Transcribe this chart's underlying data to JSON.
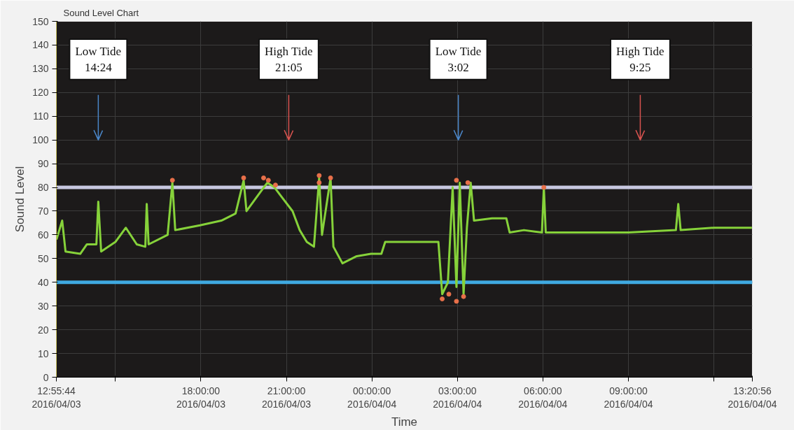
{
  "chart_data": {
    "type": "line",
    "title": "Sound Level Chart",
    "xlabel": "Time",
    "ylabel": "Sound Level",
    "xlim": [
      "2016-04-03T12:55:44",
      "2016-04-04T13:20:56"
    ],
    "xticks": [
      {
        "value": "2016-04-03T12:55:44",
        "label": "12:55:44\n2016/04/03"
      },
      {
        "value": "2016-04-03T15:00",
        "label": null
      },
      {
        "value": "2016-04-03T18:00",
        "label": "18:00:00\n2016/04/03"
      },
      {
        "value": "2016-04-03T21:00",
        "label": "21:00:00\n2016/04/03"
      },
      {
        "value": "2016-04-04T00:00",
        "label": "00:00:00\n2016/04/04"
      },
      {
        "value": "2016-04-04T03:00",
        "label": "03:00:00\n2016/04/04"
      },
      {
        "value": "2016-04-04T06:00",
        "label": "06:00:00\n2016/04/04"
      },
      {
        "value": "2016-04-04T09:00",
        "label": "09:00:00\n2016/04/04"
      },
      {
        "value": "2016-04-04T12:00",
        "label": null
      },
      {
        "value": "2016-04-04T13:20:56",
        "label": "13:20:56\n2016/04/04"
      }
    ],
    "ylim": [
      0,
      150
    ],
    "yticks": [
      0,
      10,
      20,
      30,
      40,
      50,
      60,
      70,
      80,
      90,
      100,
      110,
      120,
      130,
      140,
      150
    ],
    "grid": true,
    "series": [
      {
        "color": "#86d23a",
        "x": [
          "2016-04-03T12:56",
          "2016-04-03T13:08",
          "2016-04-03T13:15",
          "2016-04-03T13:46",
          "2016-04-03T14:00",
          "2016-04-03T14:20",
          "2016-04-03T14:24",
          "2016-04-03T14:30",
          "2016-04-03T15:00",
          "2016-04-03T15:22",
          "2016-04-03T15:45",
          "2016-04-03T16:03",
          "2016-04-03T16:06",
          "2016-04-03T16:10",
          "2016-04-03T16:50",
          "2016-04-03T17:00",
          "2016-04-03T17:06",
          "2016-04-03T17:58",
          "2016-04-03T18:43",
          "2016-04-03T19:13",
          "2016-04-03T19:30",
          "2016-04-03T19:36",
          "2016-04-03T20:05",
          "2016-04-03T20:20",
          "2016-04-03T20:35",
          "2016-04-03T20:50",
          "2016-04-03T21:13",
          "2016-04-03T21:28",
          "2016-04-03T21:43",
          "2016-04-03T21:58",
          "2016-04-03T22:09",
          "2016-04-03T22:15",
          "2016-04-03T22:33",
          "2016-04-03T22:39",
          "2016-04-03T22:58",
          "2016-04-03T23:28",
          "2016-04-03T23:58",
          "2016-04-04T00:20",
          "2016-04-04T00:28",
          "2016-04-04T01:05",
          "2016-04-04T01:43",
          "2016-04-04T02:20",
          "2016-04-04T02:28",
          "2016-04-04T02:40",
          "2016-04-04T02:50",
          "2016-04-04T02:58",
          "2016-04-04T03:05",
          "2016-04-04T03:13",
          "2016-04-04T03:20",
          "2016-04-04T03:28",
          "2016-04-04T03:35",
          "2016-04-04T04:13",
          "2016-04-04T04:43",
          "2016-04-04T04:50",
          "2016-04-04T05:20",
          "2016-04-04T05:58",
          "2016-04-04T06:02",
          "2016-04-04T06:06",
          "2016-04-04T07:40",
          "2016-04-04T09:00",
          "2016-04-04T10:40",
          "2016-04-04T10:45",
          "2016-04-04T10:50",
          "2016-04-04T12:00",
          "2016-04-04T13:20"
        ],
        "values": [
          58,
          66,
          53,
          52,
          56,
          56,
          74,
          53,
          57,
          63,
          56,
          55,
          73,
          56,
          60,
          82,
          62,
          64,
          66,
          69,
          83,
          70,
          78,
          82,
          80,
          76,
          70,
          62,
          57,
          55,
          84,
          60,
          84,
          55,
          48,
          51,
          52,
          52,
          57,
          57,
          57,
          57,
          35,
          40,
          80,
          38,
          82,
          35,
          63,
          82,
          66,
          67,
          67,
          61,
          62,
          61,
          80,
          61,
          61,
          61,
          62,
          73,
          62,
          63,
          63
        ]
      },
      {
        "type": "scatter",
        "color": "#e8704a",
        "marker": "circle",
        "x": [
          "2016-04-03T17:00",
          "2016-04-03T19:30",
          "2016-04-03T20:12",
          "2016-04-03T20:22",
          "2016-04-03T20:37",
          "2016-04-03T22:09",
          "2016-04-03T22:09",
          "2016-04-03T22:33",
          "2016-04-04T02:28",
          "2016-04-04T02:42",
          "2016-04-04T02:58",
          "2016-04-04T02:58",
          "2016-04-04T03:13",
          "2016-04-04T03:22",
          "2016-04-04T06:02"
        ],
        "values": [
          83,
          84,
          84,
          83,
          81,
          85,
          82,
          84,
          33,
          35,
          83,
          32,
          34,
          82,
          80
        ]
      }
    ],
    "ref_lines": [
      {
        "axis": "y",
        "value": 80,
        "color": "#c8c8e0"
      },
      {
        "axis": "y",
        "value": 40,
        "color": "#3fa9e0"
      },
      {
        "axis": "x",
        "value": "2016-04-03T14:24",
        "label": "Low Tide\n14:24",
        "color": "#4a86c8"
      },
      {
        "axis": "x",
        "value": "2016-04-03T21:05",
        "label": "High Tide\n21:05",
        "color": "#d9534f"
      },
      {
        "axis": "x",
        "value": "2016-04-04T03:02",
        "label": "Low Tide\n3:02",
        "color": "#4a86c8"
      },
      {
        "axis": "x",
        "value": "2016-04-04T09:25",
        "label": "High Tide\n9:25",
        "color": "#d9534f"
      }
    ]
  }
}
